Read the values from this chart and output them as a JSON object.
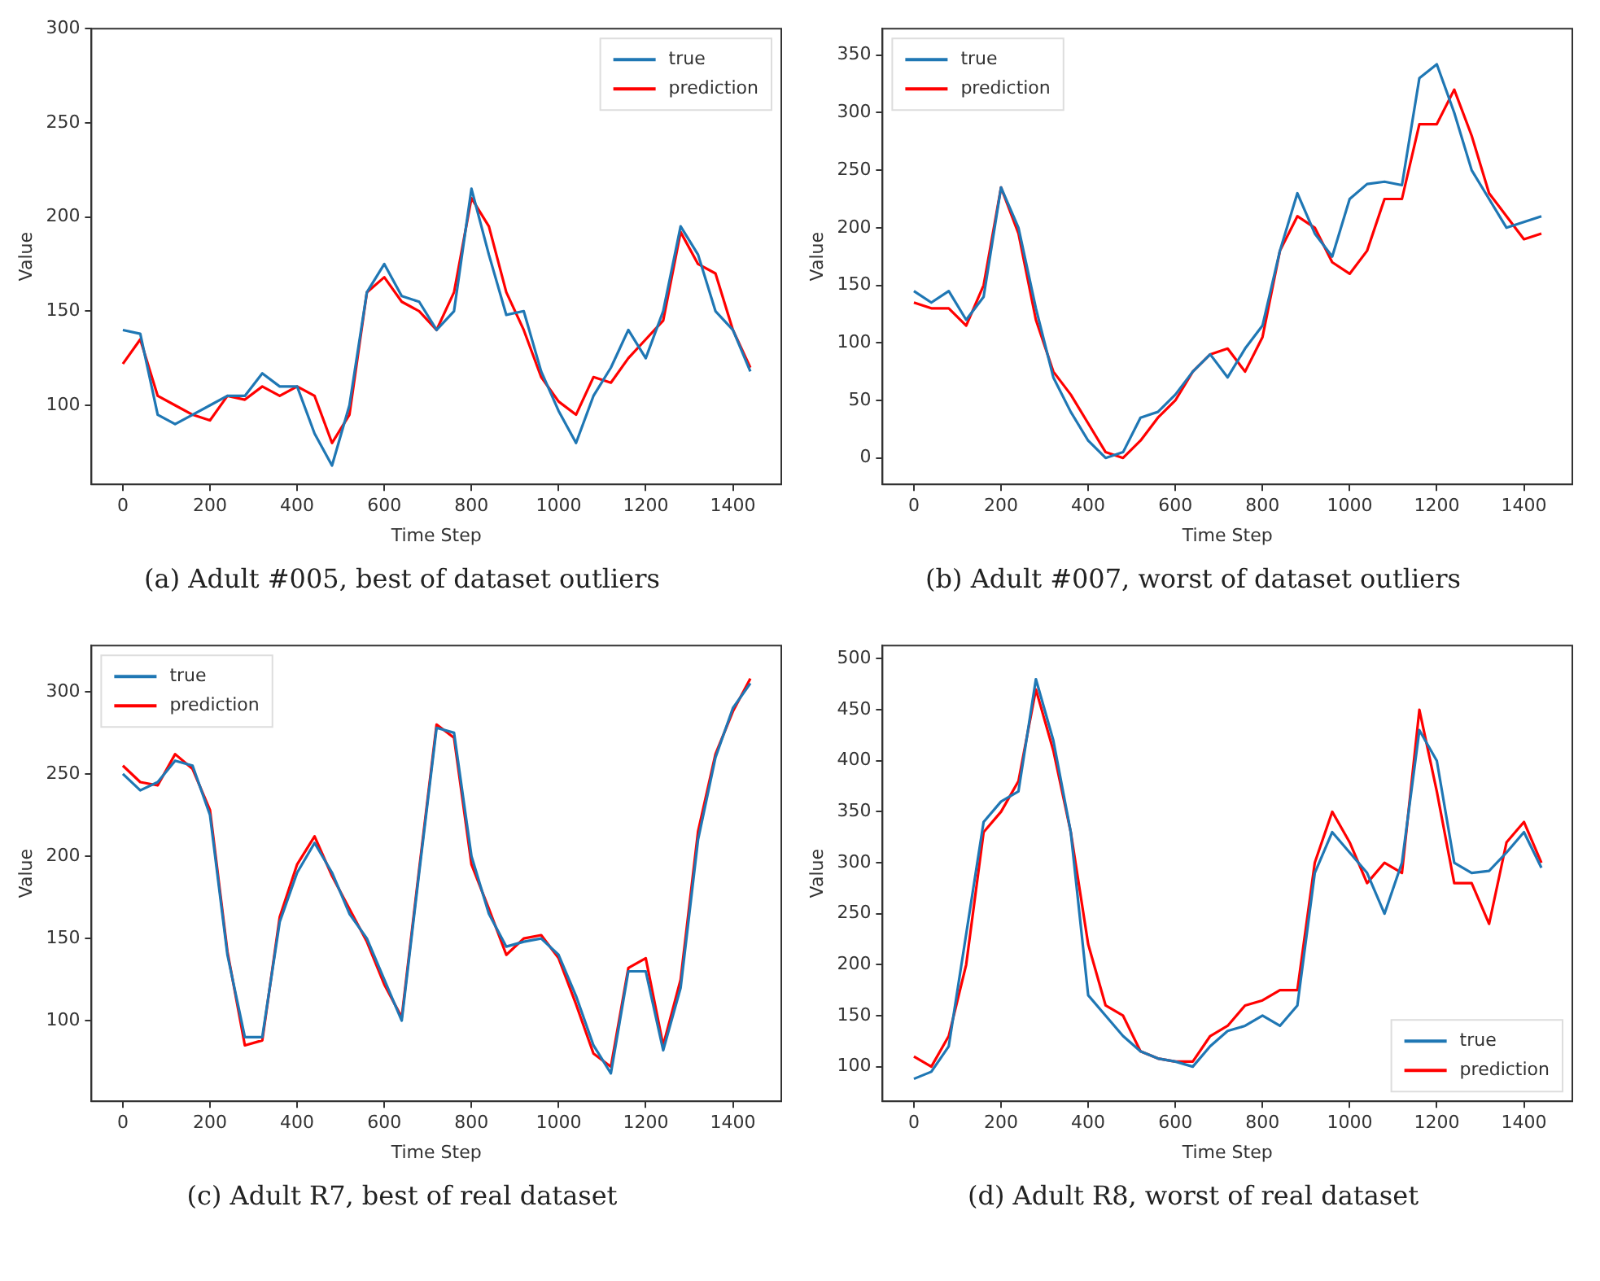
{
  "chart_data": [
    {
      "type": "line",
      "title": "(a) Adult #005, best of dataset outliers",
      "xlabel": "Time Step",
      "ylabel": "Value",
      "legend": "top right",
      "grid": false,
      "marker": "none",
      "line_style": "solid",
      "x": [
        0,
        40,
        80,
        120,
        160,
        200,
        240,
        280,
        320,
        360,
        400,
        440,
        480,
        520,
        560,
        600,
        640,
        680,
        720,
        760,
        800,
        840,
        880,
        920,
        960,
        1000,
        1040,
        1080,
        1120,
        1160,
        1200,
        1240,
        1280,
        1320,
        1360,
        1400,
        1440
      ],
      "xlim": [
        -72,
        1511
      ],
      "xticks": [
        0,
        200,
        400,
        600,
        800,
        1000,
        1200,
        1400
      ],
      "ylim": [
        58,
        300
      ],
      "yticks": [
        100,
        150,
        200,
        250,
        300
      ],
      "series": [
        {
          "name": "true",
          "color": "#1f77b4",
          "values": [
            140,
            138,
            95,
            90,
            95,
            100,
            105,
            105,
            117,
            110,
            110,
            85,
            68,
            100,
            160,
            175,
            158,
            155,
            140,
            150,
            215,
            180,
            148,
            150,
            118,
            97,
            80,
            105,
            120,
            140,
            125,
            150,
            195,
            180,
            150,
            140,
            118
          ]
        },
        {
          "name": "prediction",
          "color": "#ff0000",
          "values": [
            122,
            135,
            105,
            100,
            95,
            92,
            105,
            103,
            110,
            105,
            110,
            105,
            80,
            95,
            160,
            168,
            155,
            150,
            140,
            160,
            210,
            195,
            160,
            140,
            115,
            102,
            95,
            115,
            112,
            125,
            135,
            145,
            192,
            175,
            170,
            140,
            120
          ]
        }
      ]
    },
    {
      "type": "line",
      "title": "(b) Adult #007, worst of dataset outliers",
      "xlabel": "Time Step",
      "ylabel": "Value",
      "legend": "top left",
      "grid": false,
      "marker": "none",
      "line_style": "solid",
      "x": [
        0,
        40,
        80,
        120,
        160,
        200,
        240,
        280,
        320,
        360,
        400,
        440,
        480,
        520,
        560,
        600,
        640,
        680,
        720,
        760,
        800,
        840,
        880,
        920,
        960,
        1000,
        1040,
        1080,
        1120,
        1160,
        1200,
        1240,
        1280,
        1320,
        1360,
        1400,
        1440
      ],
      "xlim": [
        -72,
        1511
      ],
      "xticks": [
        0,
        200,
        400,
        600,
        800,
        1000,
        1200,
        1400
      ],
      "ylim": [
        -23,
        373
      ],
      "yticks": [
        0,
        50,
        100,
        150,
        200,
        250,
        300,
        350
      ],
      "series": [
        {
          "name": "true",
          "color": "#1f77b4",
          "values": [
            145,
            135,
            145,
            120,
            140,
            235,
            200,
            130,
            70,
            40,
            15,
            0,
            5,
            35,
            40,
            55,
            75,
            90,
            70,
            95,
            115,
            180,
            230,
            195,
            175,
            225,
            238,
            240,
            237,
            330,
            342,
            300,
            250,
            225,
            200,
            205,
            210
          ]
        },
        {
          "name": "prediction",
          "color": "#ff0000",
          "values": [
            135,
            130,
            130,
            115,
            150,
            235,
            195,
            120,
            75,
            55,
            30,
            5,
            0,
            15,
            35,
            50,
            75,
            90,
            95,
            75,
            105,
            180,
            210,
            200,
            170,
            160,
            180,
            225,
            225,
            290,
            290,
            320,
            280,
            230,
            210,
            190,
            195
          ]
        }
      ]
    },
    {
      "type": "line",
      "title": "(c) Adult R7, best of real dataset",
      "xlabel": "Time Step",
      "ylabel": "Value",
      "legend": "top left",
      "grid": false,
      "marker": "none",
      "line_style": "solid",
      "x": [
        0,
        40,
        80,
        120,
        160,
        200,
        240,
        280,
        320,
        360,
        400,
        440,
        480,
        520,
        560,
        600,
        640,
        680,
        720,
        760,
        800,
        840,
        880,
        920,
        960,
        1000,
        1040,
        1080,
        1120,
        1160,
        1200,
        1240,
        1280,
        1320,
        1360,
        1400,
        1440
      ],
      "xlim": [
        -72,
        1511
      ],
      "xticks": [
        0,
        200,
        400,
        600,
        800,
        1000,
        1200,
        1400
      ],
      "ylim": [
        51,
        328
      ],
      "yticks": [
        100,
        150,
        200,
        250,
        300
      ],
      "series": [
        {
          "name": "true",
          "color": "#1f77b4",
          "values": [
            250,
            240,
            245,
            258,
            255,
            225,
            140,
            90,
            90,
            160,
            190,
            208,
            190,
            165,
            150,
            125,
            100,
            190,
            278,
            275,
            200,
            165,
            145,
            148,
            150,
            140,
            115,
            85,
            68,
            130,
            130,
            82,
            120,
            210,
            260,
            290,
            305
          ]
        },
        {
          "name": "prediction",
          "color": "#ff0000",
          "values": [
            255,
            245,
            243,
            262,
            253,
            228,
            142,
            85,
            88,
            163,
            195,
            212,
            188,
            168,
            148,
            122,
            102,
            192,
            280,
            272,
            195,
            168,
            140,
            150,
            152,
            138,
            110,
            80,
            72,
            132,
            138,
            85,
            125,
            215,
            262,
            288,
            308
          ]
        }
      ]
    },
    {
      "type": "line",
      "title": "(d) Adult R8, worst of real dataset",
      "xlabel": "Time Step",
      "ylabel": "Value",
      "legend": "bottom right",
      "grid": false,
      "marker": "none",
      "line_style": "solid",
      "x": [
        0,
        40,
        80,
        120,
        160,
        200,
        240,
        280,
        320,
        360,
        400,
        440,
        480,
        520,
        560,
        600,
        640,
        680,
        720,
        760,
        800,
        840,
        880,
        920,
        960,
        1000,
        1040,
        1080,
        1120,
        1160,
        1200,
        1240,
        1280,
        1320,
        1360,
        1400,
        1440
      ],
      "xlim": [
        -72,
        1511
      ],
      "xticks": [
        0,
        200,
        400,
        600,
        800,
        1000,
        1200,
        1400
      ],
      "ylim": [
        66,
        513
      ],
      "yticks": [
        100,
        150,
        200,
        250,
        300,
        350,
        400,
        450,
        500
      ],
      "series": [
        {
          "name": "true",
          "color": "#1f77b4",
          "values": [
            88,
            95,
            120,
            230,
            340,
            360,
            370,
            480,
            420,
            330,
            170,
            150,
            130,
            115,
            108,
            105,
            100,
            120,
            135,
            140,
            150,
            140,
            160,
            290,
            330,
            310,
            290,
            250,
            300,
            430,
            400,
            300,
            290,
            292,
            310,
            330,
            295
          ]
        },
        {
          "name": "prediction",
          "color": "#ff0000",
          "values": [
            110,
            100,
            130,
            200,
            330,
            350,
            380,
            470,
            410,
            330,
            220,
            160,
            150,
            115,
            108,
            105,
            105,
            130,
            140,
            160,
            165,
            175,
            175,
            300,
            350,
            320,
            280,
            300,
            290,
            450,
            370,
            280,
            280,
            240,
            320,
            340,
            300
          ]
        }
      ]
    }
  ]
}
